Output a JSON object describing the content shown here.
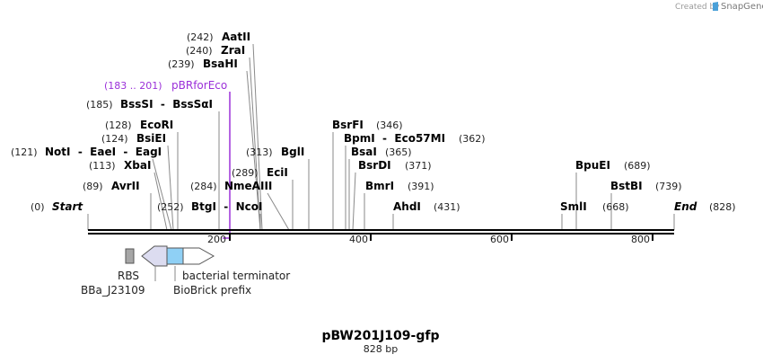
{
  "credit": {
    "text": "Created by",
    "brand": "SnapGene"
  },
  "title": "pBW201J109-gfp",
  "subtitle": "828 bp",
  "colors": {
    "primer": "#9b30d9",
    "backbone": "#000000",
    "leader": "#8a8a8a",
    "rbs": "#a6a6a6",
    "terminator": "#dcdcf0",
    "prefix": "#8fd0f5"
  },
  "scale": {
    "ticks": [
      "200",
      "400",
      "600",
      "800"
    ]
  },
  "primer": {
    "position": "(183 .. 201)",
    "name": "pBRforEco"
  },
  "sites": [
    {
      "name": "Start",
      "pos": "(0)",
      "italic": true
    },
    {
      "name": "AvrII",
      "pos": "(89)"
    },
    {
      "name": "XbaI",
      "pos": "(113)"
    },
    {
      "name": "NotI  -  EaeI  -  EagI",
      "pos": "(121)"
    },
    {
      "name": "BsiEI",
      "pos": "(124)"
    },
    {
      "name": "EcoRI",
      "pos": "(128)"
    },
    {
      "name": "BssSI  -  BssSαI",
      "pos": "(185)"
    },
    {
      "name": "BsaHI",
      "pos": "(239)"
    },
    {
      "name": "ZraI",
      "pos": "(240)"
    },
    {
      "name": "AatII",
      "pos": "(242)"
    },
    {
      "name": "BtgI  -  NcoI",
      "pos": "(252)"
    },
    {
      "name": "NmeAIII",
      "pos": "(284)"
    },
    {
      "name": "EciI",
      "pos": "(289)"
    },
    {
      "name": "BglI",
      "pos": "(313)"
    },
    {
      "name": "BsrFI",
      "pos": "(346)"
    },
    {
      "name": "BpmI  -  Eco57MI",
      "pos": "(362)"
    },
    {
      "name": "BsaI",
      "pos": "(365)"
    },
    {
      "name": "BsrDI",
      "pos": "(371)"
    },
    {
      "name": "BmrI",
      "pos": "(391)"
    },
    {
      "name": "AhdI",
      "pos": "(431)"
    },
    {
      "name": "SmlI",
      "pos": "(668)"
    },
    {
      "name": "BpuEI",
      "pos": "(689)"
    },
    {
      "name": "BstBI",
      "pos": "(739)"
    },
    {
      "name": "End",
      "pos": "(828)",
      "italic": true
    }
  ],
  "features": {
    "rbs": "RBS",
    "promoter": "BBa_J23109",
    "terminator": "bacterial terminator",
    "prefix": "BioBrick prefix"
  }
}
